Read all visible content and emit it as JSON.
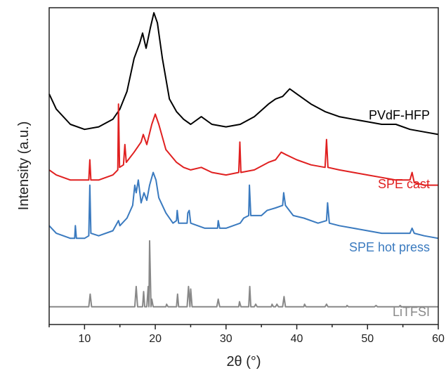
{
  "chart_data": {
    "type": "line",
    "xlabel": "2θ (°)",
    "ylabel": "Intensity (a.u.)",
    "xlim": [
      5,
      60
    ],
    "xticks": [
      10,
      20,
      30,
      40,
      50,
      60
    ],
    "y_ticks_shown": false,
    "grid": false,
    "legend": "labels placed beside each curve, right side",
    "series": [
      {
        "name": "PVdF-HFP",
        "color": "#000000",
        "points": [
          [
            5,
            0.86
          ],
          [
            6,
            0.8
          ],
          [
            8,
            0.74
          ],
          [
            10,
            0.72
          ],
          [
            12,
            0.73
          ],
          [
            14,
            0.76
          ],
          [
            15,
            0.8
          ],
          [
            16,
            0.87
          ],
          [
            17,
            1.0
          ],
          [
            17.8,
            1.06
          ],
          [
            18.2,
            1.1
          ],
          [
            18.7,
            1.04
          ],
          [
            19.3,
            1.12
          ],
          [
            19.8,
            1.18
          ],
          [
            20.3,
            1.14
          ],
          [
            21,
            1.0
          ],
          [
            22,
            0.84
          ],
          [
            23,
            0.79
          ],
          [
            24,
            0.76
          ],
          [
            25,
            0.74
          ],
          [
            26.5,
            0.77
          ],
          [
            28,
            0.74
          ],
          [
            30,
            0.73
          ],
          [
            32,
            0.74
          ],
          [
            34,
            0.77
          ],
          [
            36,
            0.82
          ],
          [
            37,
            0.84
          ],
          [
            38,
            0.85
          ],
          [
            39,
            0.88
          ],
          [
            40,
            0.86
          ],
          [
            42,
            0.82
          ],
          [
            44,
            0.79
          ],
          [
            46,
            0.77
          ],
          [
            48,
            0.76
          ],
          [
            50,
            0.75
          ],
          [
            52,
            0.74
          ],
          [
            54,
            0.74
          ],
          [
            56,
            0.72
          ],
          [
            58,
            0.71
          ],
          [
            60,
            0.7
          ]
        ]
      },
      {
        "name": "SPE cast",
        "color": "#e02020",
        "points": [
          [
            5,
            0.56
          ],
          [
            6,
            0.54
          ],
          [
            8,
            0.52
          ],
          [
            10,
            0.52
          ],
          [
            10.6,
            0.52
          ],
          [
            10.75,
            0.6
          ],
          [
            10.9,
            0.52
          ],
          [
            12,
            0.52
          ],
          [
            14,
            0.54
          ],
          [
            14.7,
            0.56
          ],
          [
            14.8,
            0.82
          ],
          [
            14.95,
            0.57
          ],
          [
            15.5,
            0.58
          ],
          [
            15.7,
            0.66
          ],
          [
            15.9,
            0.59
          ],
          [
            17,
            0.63
          ],
          [
            18,
            0.67
          ],
          [
            18.3,
            0.7
          ],
          [
            18.8,
            0.66
          ],
          [
            19.5,
            0.74
          ],
          [
            20,
            0.78
          ],
          [
            20.5,
            0.74
          ],
          [
            21.5,
            0.64
          ],
          [
            23,
            0.59
          ],
          [
            24,
            0.57
          ],
          [
            25,
            0.56
          ],
          [
            26.5,
            0.57
          ],
          [
            28,
            0.55
          ],
          [
            30,
            0.54
          ],
          [
            31.8,
            0.55
          ],
          [
            31.95,
            0.67
          ],
          [
            32.1,
            0.55
          ],
          [
            34,
            0.56
          ],
          [
            36,
            0.59
          ],
          [
            37,
            0.6
          ],
          [
            37.8,
            0.63
          ],
          [
            38.5,
            0.62
          ],
          [
            40,
            0.6
          ],
          [
            42,
            0.58
          ],
          [
            44,
            0.57
          ],
          [
            44.2,
            0.68
          ],
          [
            44.4,
            0.57
          ],
          [
            46,
            0.56
          ],
          [
            48,
            0.55
          ],
          [
            50,
            0.54
          ],
          [
            52,
            0.53
          ],
          [
            54,
            0.52
          ],
          [
            56,
            0.52
          ],
          [
            56.3,
            0.55
          ],
          [
            56.6,
            0.51
          ],
          [
            58,
            0.5
          ],
          [
            60,
            0.5
          ]
        ]
      },
      {
        "name": "SPE hot press",
        "color": "#3a7abf",
        "points": [
          [
            5,
            0.34
          ],
          [
            6,
            0.31
          ],
          [
            8,
            0.29
          ],
          [
            8.6,
            0.29
          ],
          [
            8.7,
            0.34
          ],
          [
            8.85,
            0.29
          ],
          [
            10,
            0.29
          ],
          [
            10.6,
            0.3
          ],
          [
            10.75,
            0.5
          ],
          [
            10.9,
            0.31
          ],
          [
            12,
            0.3
          ],
          [
            14,
            0.32
          ],
          [
            14.8,
            0.36
          ],
          [
            15,
            0.34
          ],
          [
            16,
            0.37
          ],
          [
            16.8,
            0.42
          ],
          [
            17.1,
            0.5
          ],
          [
            17.3,
            0.47
          ],
          [
            17.6,
            0.52
          ],
          [
            18,
            0.43
          ],
          [
            18.4,
            0.47
          ],
          [
            18.8,
            0.44
          ],
          [
            19.2,
            0.5
          ],
          [
            19.7,
            0.55
          ],
          [
            20.1,
            0.52
          ],
          [
            20.5,
            0.45
          ],
          [
            21.5,
            0.39
          ],
          [
            22.5,
            0.35
          ],
          [
            23,
            0.36
          ],
          [
            23.1,
            0.4
          ],
          [
            23.3,
            0.35
          ],
          [
            24.5,
            0.35
          ],
          [
            24.6,
            0.39
          ],
          [
            24.8,
            0.4
          ],
          [
            25,
            0.35
          ],
          [
            26,
            0.34
          ],
          [
            27,
            0.33
          ],
          [
            28.8,
            0.33
          ],
          [
            28.9,
            0.36
          ],
          [
            29.1,
            0.33
          ],
          [
            30,
            0.33
          ],
          [
            32,
            0.35
          ],
          [
            32.5,
            0.37
          ],
          [
            33.2,
            0.38
          ],
          [
            33.3,
            0.5
          ],
          [
            33.5,
            0.38
          ],
          [
            35,
            0.38
          ],
          [
            35.8,
            0.4
          ],
          [
            37,
            0.41
          ],
          [
            38,
            0.42
          ],
          [
            38.15,
            0.47
          ],
          [
            38.4,
            0.42
          ],
          [
            39.5,
            0.38
          ],
          [
            41,
            0.37
          ],
          [
            43,
            0.35
          ],
          [
            44.2,
            0.36
          ],
          [
            44.35,
            0.43
          ],
          [
            44.6,
            0.35
          ],
          [
            46,
            0.34
          ],
          [
            48,
            0.33
          ],
          [
            50,
            0.32
          ],
          [
            52,
            0.31
          ],
          [
            54,
            0.31
          ],
          [
            56,
            0.31
          ],
          [
            56.3,
            0.33
          ],
          [
            56.6,
            0.31
          ],
          [
            58,
            0.3
          ],
          [
            60,
            0.29
          ]
        ]
      },
      {
        "name": "LiTFSI",
        "color": "#888888",
        "points": [
          [
            5,
            0.02
          ],
          [
            10.6,
            0.02
          ],
          [
            10.8,
            0.07
          ],
          [
            11,
            0.02
          ],
          [
            17.1,
            0.02
          ],
          [
            17.3,
            0.1
          ],
          [
            17.5,
            0.02
          ],
          [
            18.2,
            0.02
          ],
          [
            18.35,
            0.08
          ],
          [
            18.5,
            0.02
          ],
          [
            18.8,
            0.02
          ],
          [
            19,
            0.1
          ],
          [
            19.1,
            0.02
          ],
          [
            19.2,
            0.28
          ],
          [
            19.4,
            0.02
          ],
          [
            19.5,
            0.05
          ],
          [
            19.7,
            0.02
          ],
          [
            21.5,
            0.02
          ],
          [
            21.6,
            0.03
          ],
          [
            21.8,
            0.02
          ],
          [
            23,
            0.02
          ],
          [
            23.15,
            0.07
          ],
          [
            23.3,
            0.02
          ],
          [
            24.5,
            0.02
          ],
          [
            24.7,
            0.1
          ],
          [
            24.9,
            0.02
          ],
          [
            25,
            0.09
          ],
          [
            25.2,
            0.02
          ],
          [
            28.7,
            0.02
          ],
          [
            28.9,
            0.05
          ],
          [
            29.1,
            0.02
          ],
          [
            31.8,
            0.02
          ],
          [
            31.9,
            0.04
          ],
          [
            32.1,
            0.02
          ],
          [
            33.2,
            0.02
          ],
          [
            33.35,
            0.1
          ],
          [
            33.5,
            0.02
          ],
          [
            34,
            0.02
          ],
          [
            34.2,
            0.03
          ],
          [
            34.4,
            0.02
          ],
          [
            36.4,
            0.02
          ],
          [
            36.5,
            0.03
          ],
          [
            36.7,
            0.02
          ],
          [
            37,
            0.02
          ],
          [
            37.2,
            0.03
          ],
          [
            37.4,
            0.02
          ],
          [
            38,
            0.02
          ],
          [
            38.2,
            0.06
          ],
          [
            38.4,
            0.02
          ],
          [
            41,
            0.02
          ],
          [
            41.1,
            0.03
          ],
          [
            41.3,
            0.02
          ],
          [
            44,
            0.02
          ],
          [
            44.2,
            0.03
          ],
          [
            44.4,
            0.02
          ],
          [
            47,
            0.02
          ],
          [
            47.1,
            0.025
          ],
          [
            47.3,
            0.02
          ],
          [
            51,
            0.02
          ],
          [
            51.2,
            0.025
          ],
          [
            51.4,
            0.02
          ],
          [
            54.5,
            0.02
          ],
          [
            54.6,
            0.025
          ],
          [
            54.8,
            0.02
          ],
          [
            60,
            0.02
          ]
        ]
      }
    ]
  }
}
